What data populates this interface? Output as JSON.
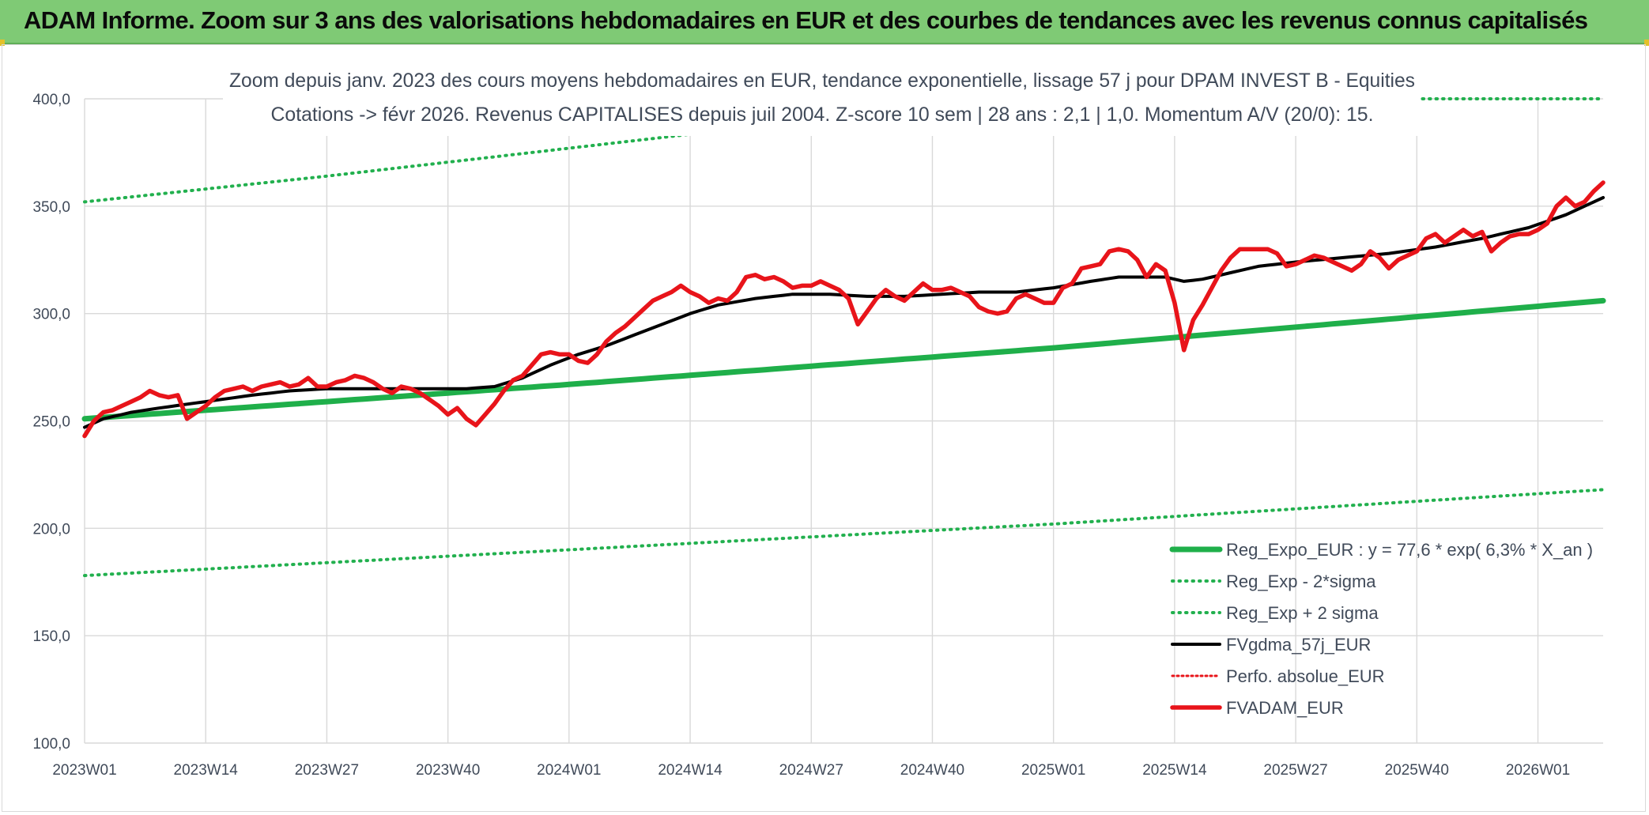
{
  "banner": {
    "title": "ADAM Informe. Zoom sur 3 ans des valorisations hebdomadaires en EUR et des courbes de tendances avec les revenus connus capitalisés"
  },
  "colors": {
    "banner_bg": "#7fca75",
    "trend": "#1faf4a",
    "sigma": "#22b04e",
    "ma": "#000000",
    "price": "#e8141a",
    "perfo": "#e8141a",
    "text": "#404a59"
  },
  "chart_data": {
    "type": "line",
    "title_line1": "Zoom depuis janv. 2023 des cours moyens hebdomadaires en EUR, tendance exponentielle, lissage 57 j pour DPAM INVEST B - Equities",
    "title_line2": "Cotations -> févr 2026. Revenus CAPITALISES depuis juil 2004. Z-score 10 sem | 28 ans : 2,1 | 1,0. Momentum A/V (20/0): 15.",
    "ylim": [
      100,
      400
    ],
    "yticks": [
      "100,0",
      "150,0",
      "200,0",
      "250,0",
      "300,0",
      "350,0",
      "400,0"
    ],
    "ytick_values": [
      100,
      150,
      200,
      250,
      300,
      350,
      400
    ],
    "grid": true,
    "legend_position": "bottom-right",
    "x_count": 164,
    "x_tick_labels": [
      "2023W01",
      "2023W14",
      "2023W27",
      "2023W40",
      "2024W01",
      "2024W14",
      "2024W27",
      "2024W40",
      "2025W01",
      "2025W14",
      "2025W27",
      "2025W40",
      "2026W01"
    ],
    "x_tick_positions": [
      0,
      13,
      26,
      39,
      52,
      65,
      78,
      91,
      104,
      117,
      130,
      143,
      156
    ],
    "series": [
      {
        "name": "Reg_Expo_EUR : y = 77,6 * exp( 6,3% *  X_an )",
        "key": "trend",
        "style": "thick",
        "anchors": [
          [
            0,
            251
          ],
          [
            52,
            267
          ],
          [
            104,
            284
          ],
          [
            163,
            306
          ]
        ]
      },
      {
        "name": "Reg_Exp - 2*sigma",
        "key": "lower",
        "style": "dotted",
        "anchors": [
          [
            0,
            178
          ],
          [
            52,
            190
          ],
          [
            104,
            202
          ],
          [
            163,
            218
          ]
        ]
      },
      {
        "name": "Reg_Exp + 2 sigma",
        "key": "upper",
        "style": "dotted",
        "anchors": [
          [
            0,
            352
          ],
          [
            26,
            364
          ],
          [
            52,
            377
          ],
          [
            78,
            390
          ],
          [
            97,
            400
          ],
          [
            163,
            400
          ]
        ]
      },
      {
        "name": "FVgdma_57j_EUR",
        "key": "ma",
        "style": "solid",
        "anchors": [
          [
            0,
            247
          ],
          [
            2,
            251
          ],
          [
            5,
            254
          ],
          [
            8,
            256
          ],
          [
            13,
            259
          ],
          [
            18,
            262
          ],
          [
            22,
            264
          ],
          [
            26,
            265
          ],
          [
            30,
            265
          ],
          [
            34,
            265
          ],
          [
            38,
            265
          ],
          [
            41,
            265
          ],
          [
            44,
            266
          ],
          [
            47,
            270
          ],
          [
            50,
            276
          ],
          [
            53,
            281
          ],
          [
            56,
            285
          ],
          [
            59,
            290
          ],
          [
            62,
            295
          ],
          [
            65,
            300
          ],
          [
            68,
            304
          ],
          [
            72,
            307
          ],
          [
            76,
            309
          ],
          [
            80,
            309
          ],
          [
            84,
            308
          ],
          [
            88,
            308
          ],
          [
            92,
            309
          ],
          [
            96,
            310
          ],
          [
            100,
            310
          ],
          [
            104,
            312
          ],
          [
            108,
            315
          ],
          [
            111,
            317
          ],
          [
            114,
            317
          ],
          [
            116,
            317
          ],
          [
            118,
            315
          ],
          [
            120,
            316
          ],
          [
            122,
            318
          ],
          [
            126,
            322
          ],
          [
            130,
            324
          ],
          [
            135,
            326
          ],
          [
            140,
            328
          ],
          [
            145,
            331
          ],
          [
            150,
            335
          ],
          [
            155,
            340
          ],
          [
            159,
            346
          ],
          [
            163,
            354
          ]
        ]
      },
      {
        "name": "Perfo. absolue_EUR",
        "key": "perfo",
        "style": "dotted-legend-only"
      },
      {
        "name": "FVADAM_EUR",
        "key": "price",
        "style": "thick",
        "anchors": [
          [
            0,
            243
          ],
          [
            1,
            250
          ],
          [
            2,
            254
          ],
          [
            3,
            255
          ],
          [
            4,
            257
          ],
          [
            5,
            259
          ],
          [
            6,
            261
          ],
          [
            7,
            264
          ],
          [
            8,
            262
          ],
          [
            9,
            261
          ],
          [
            10,
            262
          ],
          [
            11,
            251
          ],
          [
            12,
            254
          ],
          [
            13,
            257
          ],
          [
            14,
            261
          ],
          [
            15,
            264
          ],
          [
            16,
            265
          ],
          [
            17,
            266
          ],
          [
            18,
            264
          ],
          [
            19,
            266
          ],
          [
            20,
            267
          ],
          [
            21,
            268
          ],
          [
            22,
            266
          ],
          [
            23,
            267
          ],
          [
            24,
            270
          ],
          [
            25,
            266
          ],
          [
            26,
            266
          ],
          [
            27,
            268
          ],
          [
            28,
            269
          ],
          [
            29,
            271
          ],
          [
            30,
            270
          ],
          [
            31,
            268
          ],
          [
            32,
            265
          ],
          [
            33,
            263
          ],
          [
            34,
            266
          ],
          [
            35,
            265
          ],
          [
            36,
            263
          ],
          [
            37,
            260
          ],
          [
            38,
            257
          ],
          [
            39,
            253
          ],
          [
            40,
            256
          ],
          [
            41,
            251
          ],
          [
            42,
            248
          ],
          [
            43,
            253
          ],
          [
            44,
            258
          ],
          [
            45,
            264
          ],
          [
            46,
            269
          ],
          [
            47,
            271
          ],
          [
            48,
            276
          ],
          [
            49,
            281
          ],
          [
            50,
            282
          ],
          [
            51,
            281
          ],
          [
            52,
            281
          ],
          [
            53,
            278
          ],
          [
            54,
            277
          ],
          [
            55,
            281
          ],
          [
            56,
            287
          ],
          [
            57,
            291
          ],
          [
            58,
            294
          ],
          [
            59,
            298
          ],
          [
            60,
            302
          ],
          [
            61,
            306
          ],
          [
            62,
            308
          ],
          [
            63,
            310
          ],
          [
            64,
            313
          ],
          [
            65,
            310
          ],
          [
            66,
            308
          ],
          [
            67,
            305
          ],
          [
            68,
            307
          ],
          [
            69,
            306
          ],
          [
            70,
            310
          ],
          [
            71,
            317
          ],
          [
            72,
            318
          ],
          [
            73,
            316
          ],
          [
            74,
            317
          ],
          [
            75,
            315
          ],
          [
            76,
            312
          ],
          [
            77,
            313
          ],
          [
            78,
            313
          ],
          [
            79,
            315
          ],
          [
            80,
            313
          ],
          [
            81,
            311
          ],
          [
            82,
            307
          ],
          [
            83,
            295
          ],
          [
            84,
            301
          ],
          [
            85,
            307
          ],
          [
            86,
            311
          ],
          [
            87,
            308
          ],
          [
            88,
            306
          ],
          [
            89,
            310
          ],
          [
            90,
            314
          ],
          [
            91,
            311
          ],
          [
            92,
            311
          ],
          [
            93,
            312
          ],
          [
            94,
            310
          ],
          [
            95,
            308
          ],
          [
            96,
            303
          ],
          [
            97,
            301
          ],
          [
            98,
            300
          ],
          [
            99,
            301
          ],
          [
            100,
            307
          ],
          [
            101,
            309
          ],
          [
            102,
            307
          ],
          [
            103,
            305
          ],
          [
            104,
            305
          ],
          [
            105,
            312
          ],
          [
            106,
            314
          ],
          [
            107,
            321
          ],
          [
            108,
            322
          ],
          [
            109,
            323
          ],
          [
            110,
            329
          ],
          [
            111,
            330
          ],
          [
            112,
            329
          ],
          [
            113,
            325
          ],
          [
            114,
            317
          ],
          [
            115,
            323
          ],
          [
            116,
            320
          ],
          [
            117,
            305
          ],
          [
            118,
            283
          ],
          [
            119,
            297
          ],
          [
            120,
            304
          ],
          [
            121,
            312
          ],
          [
            122,
            320
          ],
          [
            123,
            326
          ],
          [
            124,
            330
          ],
          [
            125,
            330
          ],
          [
            126,
            330
          ],
          [
            127,
            330
          ],
          [
            128,
            328
          ],
          [
            129,
            322
          ],
          [
            130,
            323
          ],
          [
            131,
            325
          ],
          [
            132,
            327
          ],
          [
            133,
            326
          ],
          [
            134,
            324
          ],
          [
            135,
            322
          ],
          [
            136,
            320
          ],
          [
            137,
            323
          ],
          [
            138,
            329
          ],
          [
            139,
            326
          ],
          [
            140,
            321
          ],
          [
            141,
            325
          ],
          [
            142,
            327
          ],
          [
            143,
            329
          ],
          [
            144,
            335
          ],
          [
            145,
            337
          ],
          [
            146,
            333
          ],
          [
            147,
            336
          ],
          [
            148,
            339
          ],
          [
            149,
            336
          ],
          [
            150,
            338
          ],
          [
            151,
            329
          ],
          [
            152,
            333
          ],
          [
            153,
            336
          ],
          [
            154,
            337
          ],
          [
            155,
            337
          ],
          [
            156,
            339
          ],
          [
            157,
            342
          ],
          [
            158,
            350
          ],
          [
            159,
            354
          ],
          [
            160,
            350
          ],
          [
            161,
            352
          ],
          [
            162,
            357
          ],
          [
            163,
            361
          ]
        ]
      }
    ]
  }
}
